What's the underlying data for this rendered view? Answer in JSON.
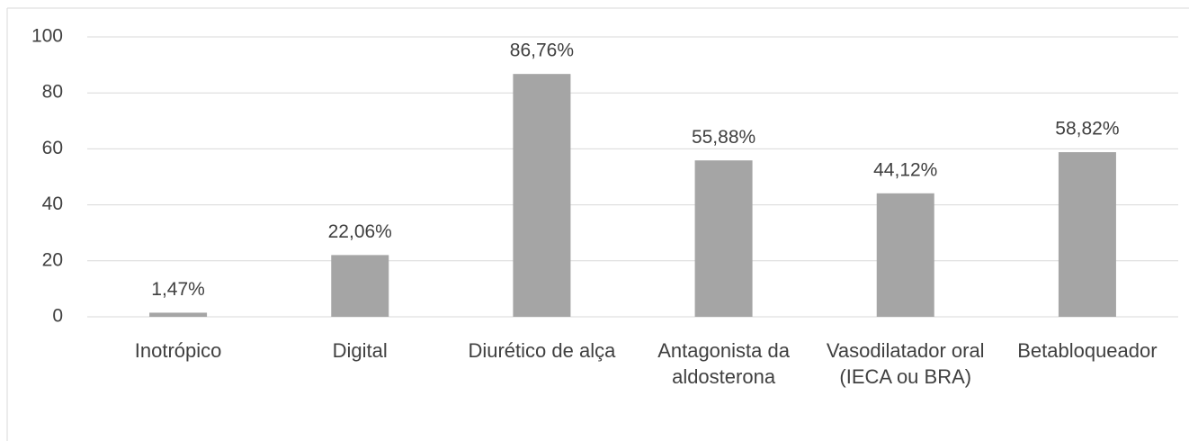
{
  "chart_data": {
    "type": "bar",
    "categories": [
      "Inotrópico",
      "Digital",
      "Diurético de alça",
      "Antagonista da aldosterona",
      "Vasodilatador oral (IECA ou BRA)",
      "Betabloqueador"
    ],
    "values": [
      1.47,
      22.06,
      86.76,
      55.88,
      44.12,
      58.82
    ],
    "value_labels": [
      "1,47%",
      "22,06%",
      "86,76%",
      "55,88%",
      "44,12%",
      "58,82%"
    ],
    "color": "#a5a5a5",
    "ylim": [
      0,
      100
    ],
    "yticks": [
      0,
      20,
      40,
      60,
      80,
      100
    ],
    "grid": true
  }
}
